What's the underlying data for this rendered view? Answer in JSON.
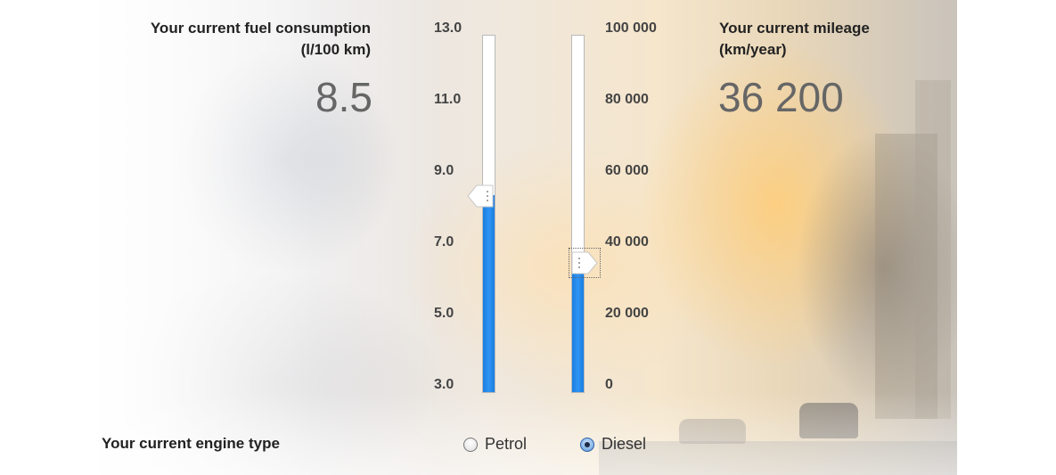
{
  "fuel": {
    "label_line1": "Your current fuel consumption",
    "label_line2": "(l/100 km)",
    "value": "8.5",
    "slider": {
      "min": 3.0,
      "max": 13.0,
      "current": 8.5,
      "ticks": [
        "13.0",
        "11.0",
        "9.0",
        "7.0",
        "5.0",
        "3.0"
      ]
    }
  },
  "mileage": {
    "label_line1": "Your current mileage",
    "label_line2": "(km/year)",
    "value": "36 200",
    "slider": {
      "min": 0,
      "max": 100000,
      "current": 36200,
      "ticks": [
        "100 000",
        "80 000",
        "60 000",
        "40 000",
        "20 000",
        "0"
      ]
    }
  },
  "engine": {
    "label": "Your current engine type",
    "options": [
      {
        "label": "Petrol",
        "checked": false
      },
      {
        "label": "Diesel",
        "checked": true
      }
    ]
  },
  "colors": {
    "slider_fill": "#2f94f3",
    "label_text": "#222222",
    "value_text": "#666666"
  },
  "icons": {
    "slider_handle": "slider-handle-arrow-icon",
    "radio": "radio-button-icon"
  }
}
